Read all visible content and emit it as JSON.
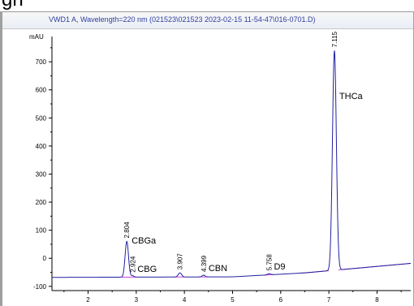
{
  "page": {
    "top_label": "gn"
  },
  "chart_data": {
    "type": "line",
    "title": "VWD1 A, Wavelength=220 nm (021523\\021523 2023-02-15 11-54-47\\016-0701.D)",
    "ylabel": "mAU",
    "xlabel": "",
    "xlim": [
      1.25,
      8.7
    ],
    "ylim": [
      -115,
      790
    ],
    "x_ticks": [
      "2",
      "3",
      "4",
      "5",
      "6",
      "7",
      "8"
    ],
    "y_ticks": [
      "-100",
      "0",
      "100",
      "200",
      "300",
      "400",
      "500",
      "600",
      "700"
    ],
    "baseline": [
      {
        "x": 1.25,
        "y": -68
      },
      {
        "x": 5.0,
        "y": -66
      },
      {
        "x": 6.5,
        "y": -52
      },
      {
        "x": 8.7,
        "y": -18
      }
    ],
    "peaks": [
      {
        "rt": 2.804,
        "rt_label": "2.804",
        "name": "CBGa",
        "height": 60,
        "width": 0.035
      },
      {
        "rt": 2.924,
        "rt_label": "2.924",
        "name": "CBG",
        "height": -62,
        "width": 0.03
      },
      {
        "rt": 3.907,
        "rt_label": "3.907",
        "name": "",
        "height": -52,
        "width": 0.035
      },
      {
        "rt": 4.399,
        "rt_label": "4.399",
        "name": "CBN",
        "height": -60,
        "width": 0.03
      },
      {
        "rt": 5.758,
        "rt_label": "5.758",
        "name": "D9",
        "height": -55,
        "width": 0.035
      },
      {
        "rt": 7.115,
        "rt_label": "7.115",
        "name": "THCa",
        "height": 740,
        "width": 0.04
      }
    ],
    "colors": {
      "trace": "#2020a0",
      "baseline": "#d040d0",
      "axis": "#000000",
      "title": "#3040a0"
    },
    "grid": false
  }
}
